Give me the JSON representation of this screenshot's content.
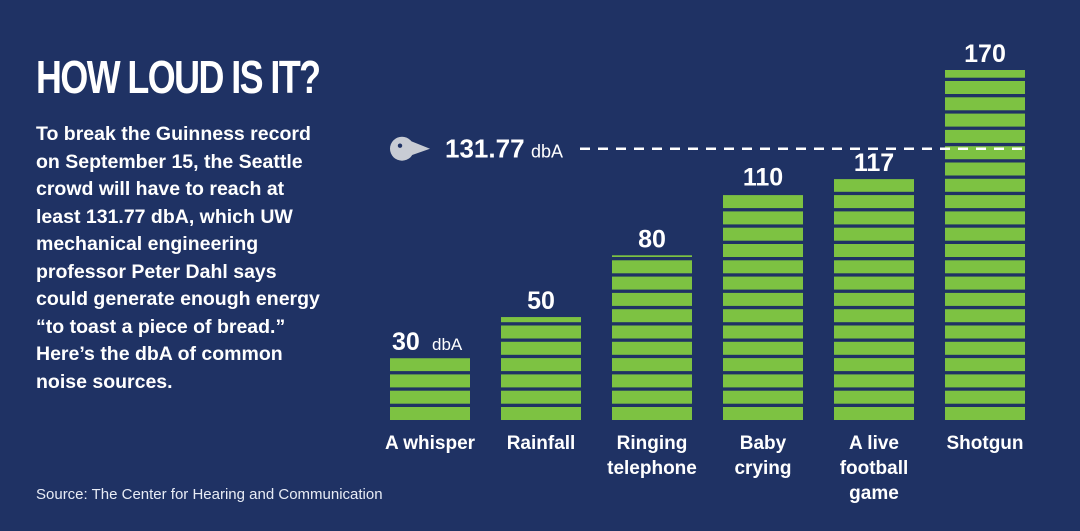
{
  "title": "HOW LOUD IS IT?",
  "body": "To break the Guinness record on September 15, the Seattle crowd will have to reach at least 131.77 dbA, which UW mechanical engineering professor Peter Dahl says could generate enough energy “to toast a piece of bread.” Here’s the dbA of common noise sources.",
  "source": "Source: The Center for Hearing and Communication",
  "colors": {
    "background": "#1f3264",
    "bar": "#7dc242",
    "text": "#ffffff",
    "icon": "#c8ccd4"
  },
  "chart_data": {
    "type": "bar",
    "unit": "dbA",
    "categories": [
      [
        "A whisper"
      ],
      [
        "Rainfall"
      ],
      [
        "Ringing",
        "telephone"
      ],
      [
        "Baby",
        "crying"
      ],
      [
        "A live",
        "football",
        "game"
      ],
      [
        "Shotgun"
      ]
    ],
    "values": [
      30,
      50,
      80,
      110,
      117,
      170
    ],
    "value_labels": [
      "30",
      "50",
      "80",
      "110",
      "117",
      "170"
    ],
    "reference_line": {
      "value": 131.77,
      "label": "131.77",
      "unit": "dbA",
      "style": "dashed",
      "icon": "seahawk-logo-icon"
    }
  }
}
